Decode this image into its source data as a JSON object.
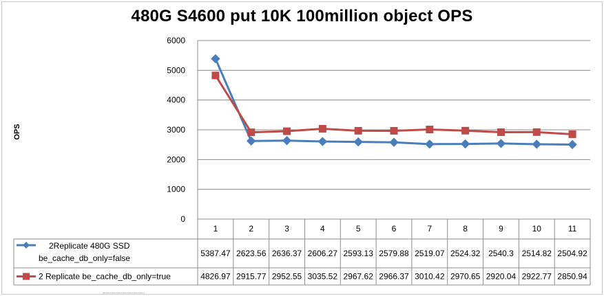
{
  "chart_data": {
    "type": "line",
    "title": "480G S4600 put 10K 100million object OPS",
    "xlabel": "",
    "ylabel": "OPS",
    "ylim": [
      0,
      6000
    ],
    "yticks": [
      0,
      1000,
      2000,
      3000,
      4000,
      5000,
      6000
    ],
    "grid": true,
    "legend": "data-table-left",
    "categories": [
      "1",
      "2",
      "3",
      "4",
      "5",
      "6",
      "7",
      "8",
      "9",
      "10",
      "11"
    ],
    "series": [
      {
        "name": "2Replicate 480G SSD be_cache_db_only=false",
        "legend_lines": [
          "2Replicate 480G SSD",
          "be_cache_db_only=false"
        ],
        "marker": "diamond",
        "color": "#4a7ebb",
        "values": [
          5387.47,
          2623.56,
          2636.37,
          2606.27,
          2593.13,
          2579.88,
          2519.07,
          2524.32,
          2540.3,
          2514.82,
          2504.92
        ]
      },
      {
        "name": "2 Replicate be_cache_db_only=true",
        "legend_lines": [
          "2 Replicate be_cache_db_only=true"
        ],
        "marker": "square",
        "color": "#be4b48",
        "values": [
          4826.97,
          2915.77,
          2952.55,
          3035.52,
          2967.62,
          2966.37,
          3010.42,
          2970.65,
          2920.04,
          2922.77,
          2850.94
        ]
      }
    ]
  }
}
